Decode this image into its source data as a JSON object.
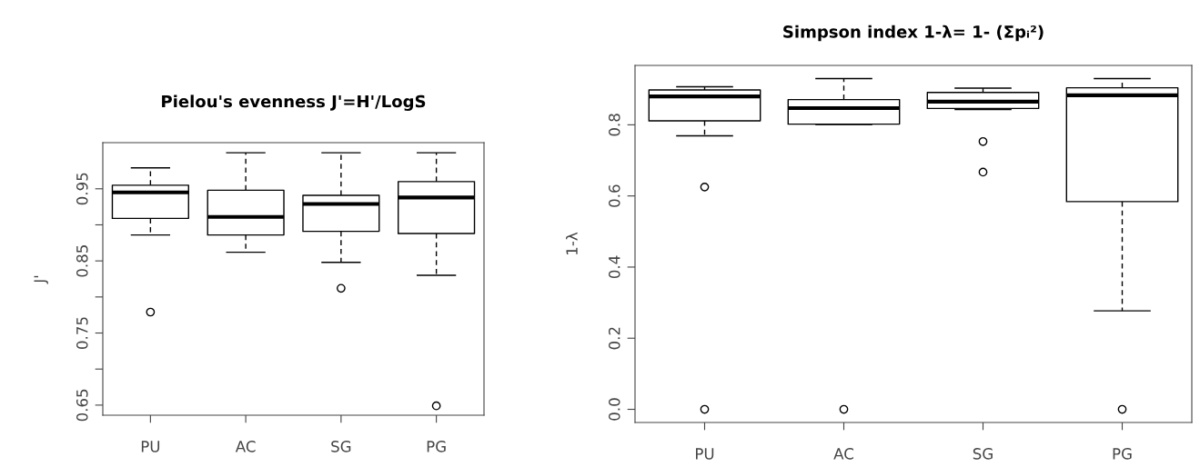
{
  "chart_data": [
    {
      "type": "box",
      "title": "Pielou's evenness J'=H'/LogS",
      "ylabel": "J'",
      "categories": [
        "PU",
        "AC",
        "SG",
        "PG"
      ],
      "boxes": [
        {
          "low": 0.886,
          "q1": 0.909,
          "median": 0.945,
          "q3": 0.955,
          "high": 0.979,
          "outliers": [
            0.779
          ]
        },
        {
          "low": 0.862,
          "q1": 0.886,
          "median": 0.911,
          "q3": 0.948,
          "high": 1.0
        },
        {
          "low": 0.848,
          "q1": 0.891,
          "median": 0.929,
          "q3": 0.941,
          "high": 1.0,
          "outliers": [
            0.812
          ]
        },
        {
          "low": 0.83,
          "q1": 0.888,
          "median": 0.938,
          "q3": 0.96,
          "high": 1.0,
          "outliers": [
            0.649
          ]
        }
      ],
      "ylim": [
        0.636,
        1.014
      ],
      "yticks": [
        0.65,
        {
          "value": 0.7,
          "label": null
        },
        0.75,
        {
          "value": 0.8,
          "label": null
        },
        0.85,
        {
          "value": 0.9,
          "label": null
        },
        0.95
      ],
      "grid": false,
      "legend": false
    },
    {
      "type": "box",
      "title": "Simpson index 1-λ= 1- (Σpᵢ²)",
      "ylabel": "1-λ",
      "categories": [
        "PU",
        "AC",
        "SG",
        "PG"
      ],
      "boxes": [
        {
          "low": 0.769,
          "q1": 0.811,
          "median": 0.88,
          "q3": 0.898,
          "high": 0.907,
          "outliers": [
            0.625,
            0.0
          ]
        },
        {
          "low": 0.801,
          "q1": 0.802,
          "median": 0.847,
          "q3": 0.871,
          "high": 0.93,
          "outliers": [
            0.0
          ]
        },
        {
          "low": 0.843,
          "q1": 0.846,
          "median": 0.865,
          "q3": 0.891,
          "high": 0.903,
          "outliers": [
            0.753,
            0.667
          ]
        },
        {
          "low": 0.277,
          "q1": 0.584,
          "median": 0.883,
          "q3": 0.904,
          "high": 0.93,
          "outliers": [
            0.0
          ]
        }
      ],
      "ylim": [
        -0.037,
        0.967
      ],
      "yticks": [
        {
          "value": 0.0,
          "label": "0.0"
        },
        0.2,
        0.4,
        0.6,
        0.8
      ],
      "grid": false,
      "legend": false
    }
  ]
}
